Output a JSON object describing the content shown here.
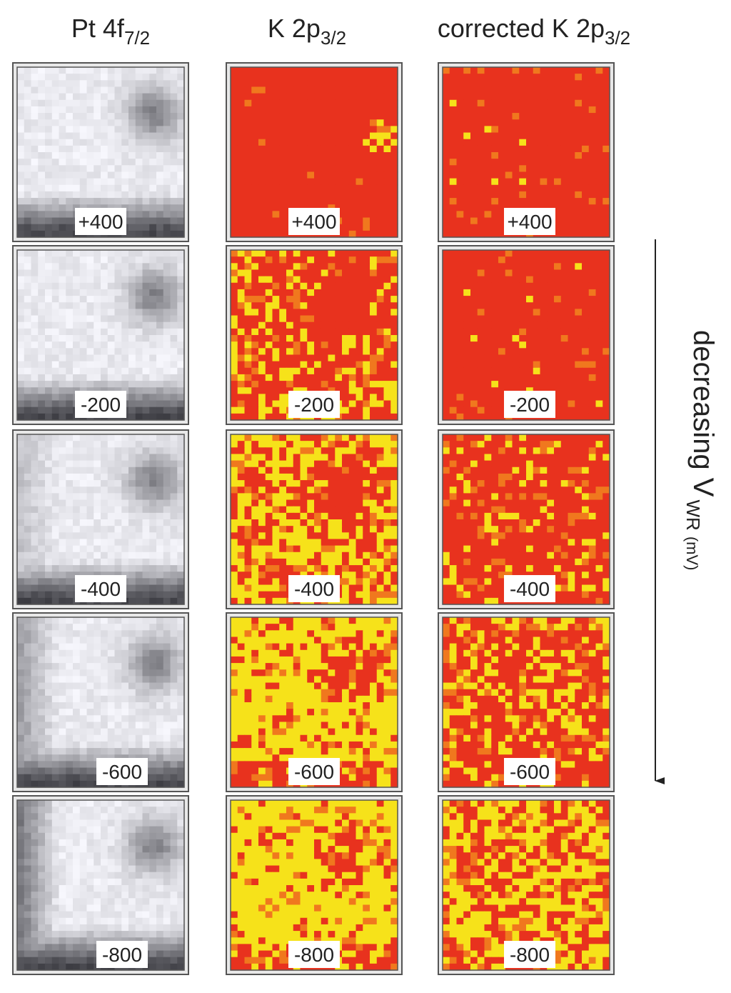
{
  "headers": [
    {
      "text": "Pt 4f",
      "subscript": "7/2"
    },
    {
      "text": "K 2p",
      "subscript": "3/2"
    },
    {
      "text": "corrected K 2p",
      "subscript": "3/2"
    }
  ],
  "panels": [
    [
      "+400",
      "+400",
      "+400"
    ],
    [
      "-200",
      "-200",
      "-200"
    ],
    [
      "-400",
      "-400",
      "-400"
    ],
    [
      "-600",
      "-600",
      "-600"
    ],
    [
      "-800",
      "-800",
      "-800"
    ]
  ],
  "axis_label": {
    "text": "decreasing V",
    "subscript": "WR",
    "unit": "(mV)"
  }
}
